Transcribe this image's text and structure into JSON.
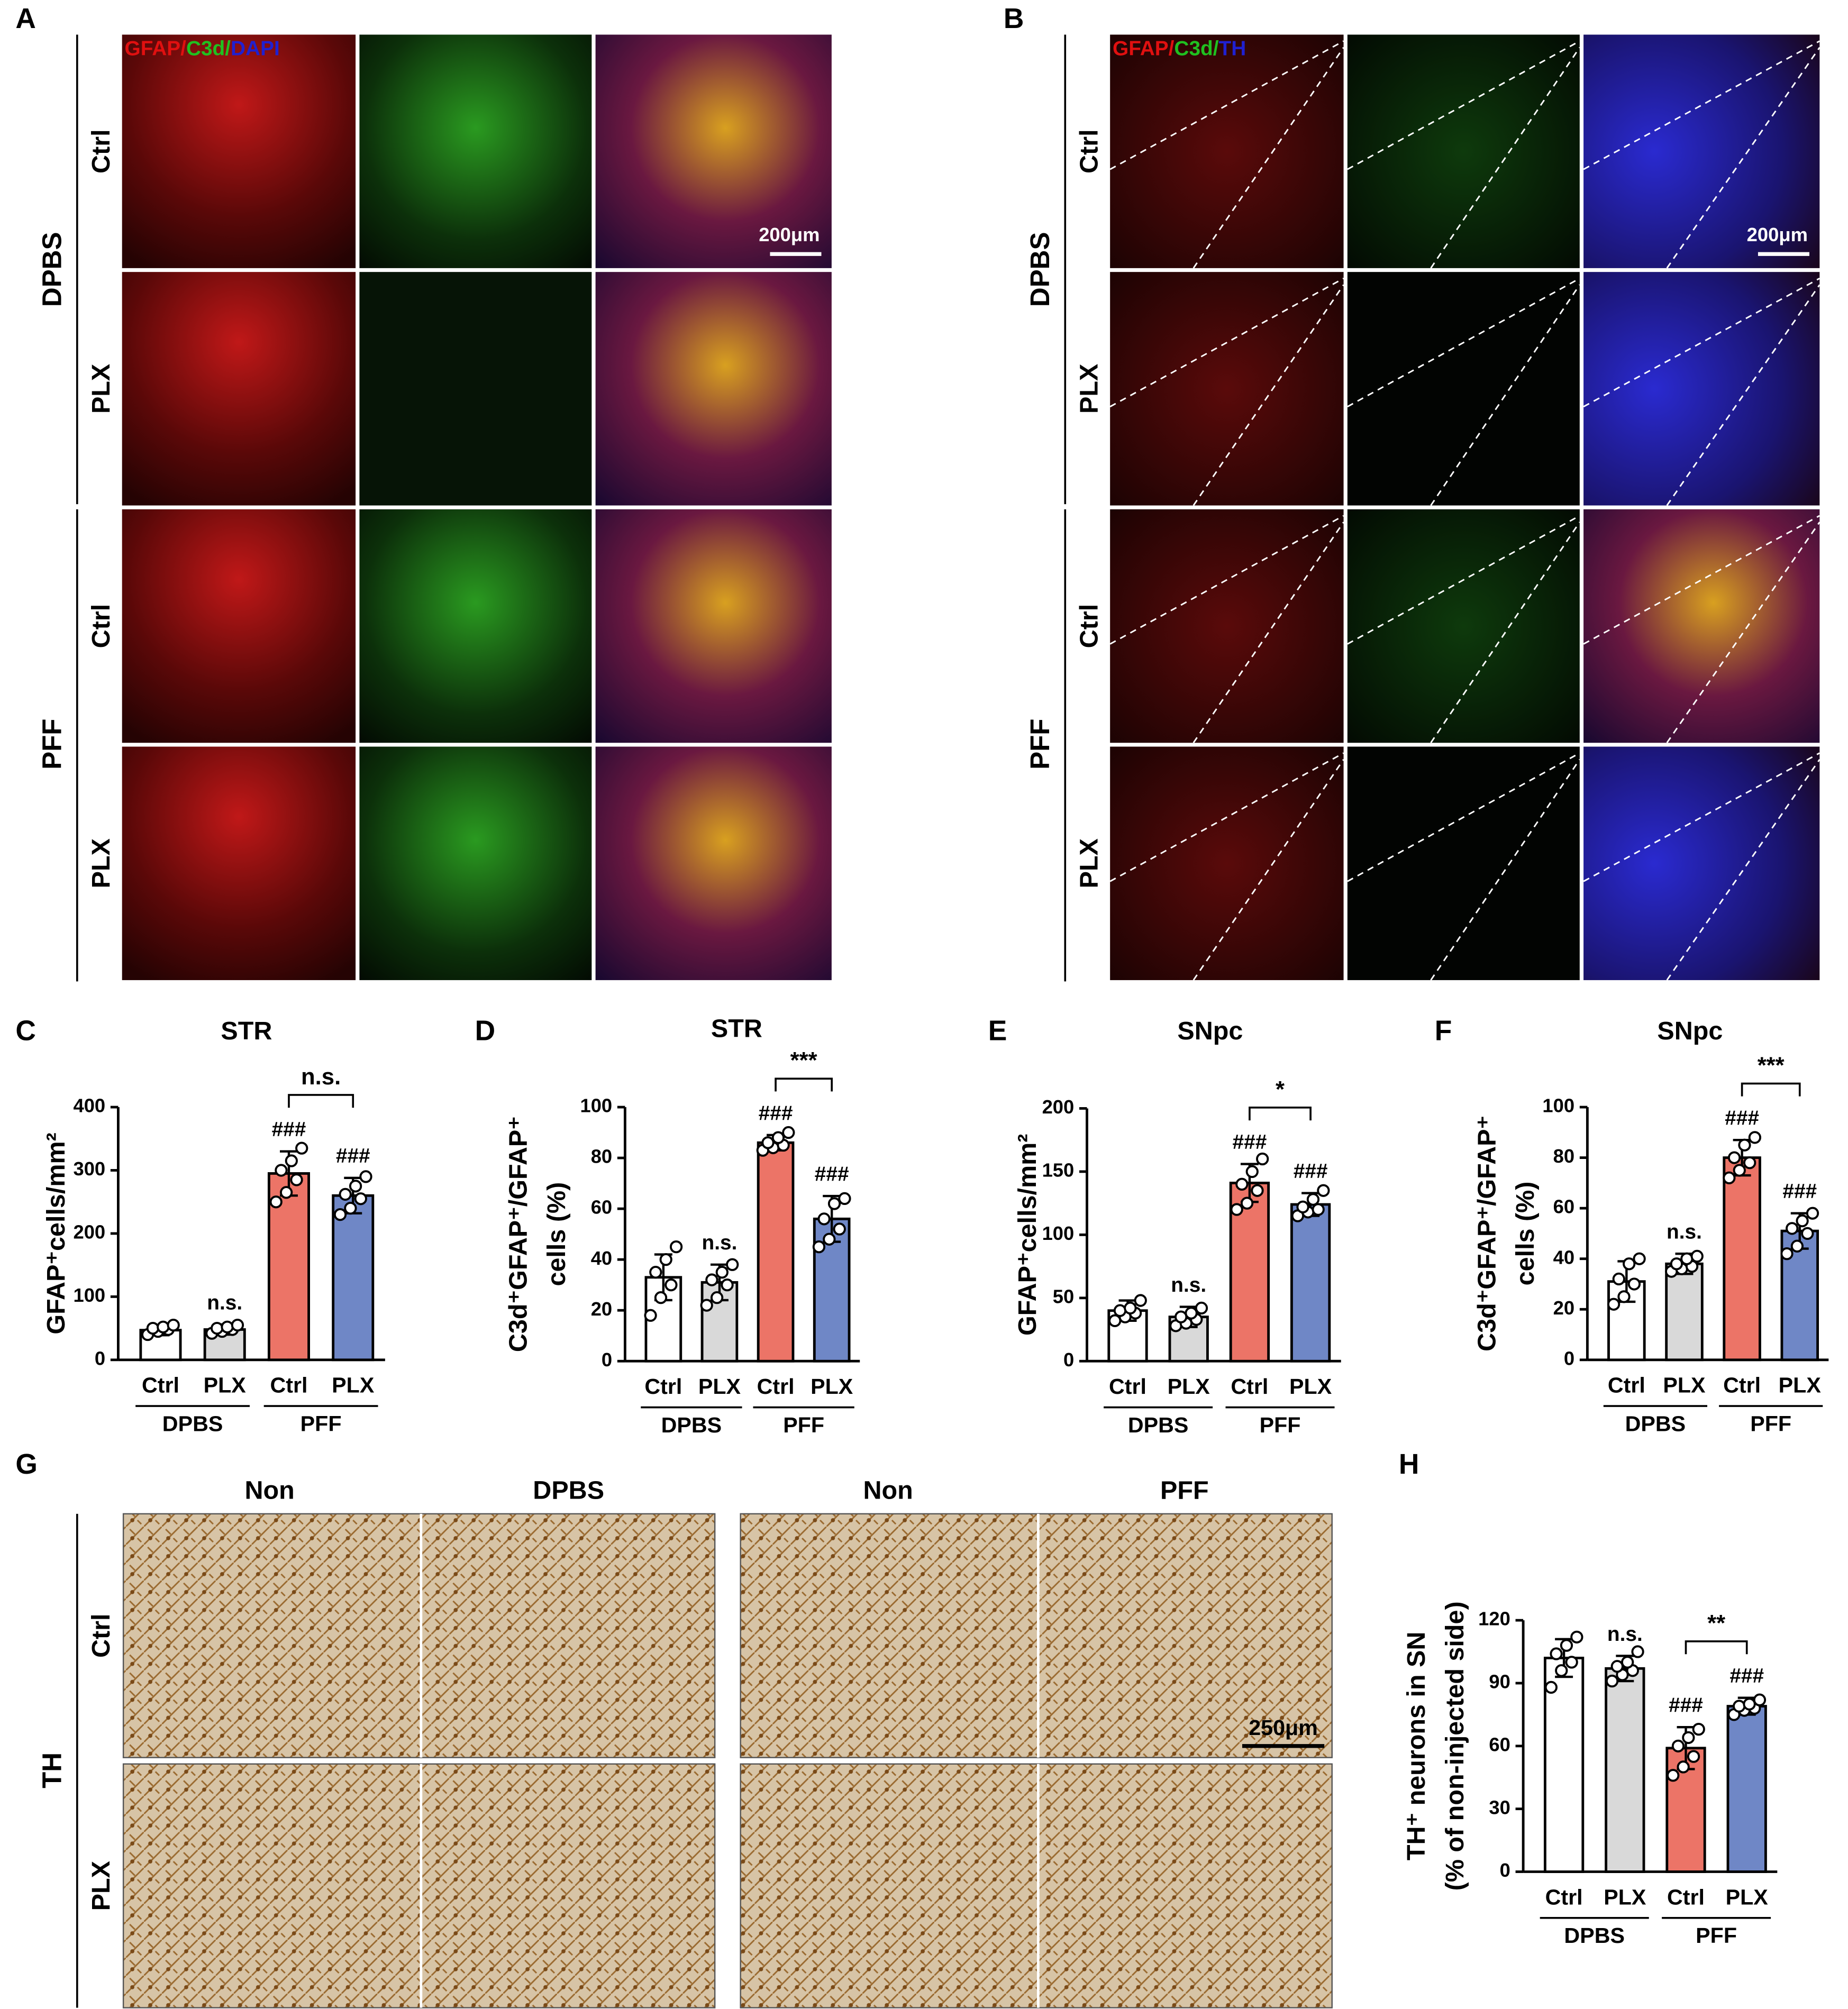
{
  "figure": {
    "panel_A": {
      "letter": "A",
      "stains": [
        "GFAP/",
        "C3d/",
        "DAPI"
      ],
      "stain_colors": [
        "#e01010",
        "#20c020",
        "#2020d0"
      ],
      "groups": [
        "DPBS",
        "PFF"
      ],
      "rows": [
        "Ctrl",
        "PLX",
        "Ctrl",
        "PLX"
      ],
      "scale_bar": "200μm"
    },
    "panel_B": {
      "letter": "B",
      "stains": [
        "GFAP/",
        "C3d/",
        "TH"
      ],
      "stain_colors": [
        "#e01010",
        "#20c020",
        "#2020d0"
      ],
      "groups": [
        "DPBS",
        "PFF"
      ],
      "rows": [
        "Ctrl",
        "PLX",
        "Ctrl",
        "PLX"
      ],
      "scale_bar": "200μm"
    },
    "panel_G": {
      "letter": "G",
      "columns": [
        "Non",
        "DPBS",
        "Non",
        "PFF"
      ],
      "group": "TH",
      "rows": [
        "Ctrl",
        "PLX"
      ],
      "scale_bar": "250μm"
    }
  },
  "chart_data": [
    {
      "type": "bar",
      "label": "C",
      "title": "STR",
      "ylabel": [
        "GFAP⁺cells/mm²"
      ],
      "categories": [
        "Ctrl",
        "PLX",
        "Ctrl",
        "PLX"
      ],
      "groups": [
        "DPBS",
        "PFF"
      ],
      "values": [
        47,
        48,
        295,
        260
      ],
      "errors": [
        8,
        8,
        35,
        28
      ],
      "colors": [
        "#ffffff",
        "#d9d9d9",
        "#ec7467",
        "#6f87c6"
      ],
      "points": [
        [
          40,
          45,
          48,
          50,
          52,
          55
        ],
        [
          42,
          45,
          48,
          50,
          52,
          55
        ],
        [
          250,
          265,
          285,
          300,
          315,
          335
        ],
        [
          230,
          240,
          255,
          262,
          275,
          290
        ]
      ],
      "bar_labels": [
        null,
        "n.s.",
        "###",
        "###"
      ],
      "bracket_label": "n.s.",
      "ylim": [
        0,
        400
      ],
      "yticks": [
        0,
        100,
        200,
        300,
        400
      ]
    },
    {
      "type": "bar",
      "label": "D",
      "title": "STR",
      "ylabel": [
        "C3d⁺GFAP⁺/GFAP⁺",
        "cells (%)"
      ],
      "categories": [
        "Ctrl",
        "PLX",
        "Ctrl",
        "PLX"
      ],
      "groups": [
        "DPBS",
        "PFF"
      ],
      "values": [
        33,
        31,
        86,
        56
      ],
      "errors": [
        9,
        7,
        3,
        9
      ],
      "colors": [
        "#ffffff",
        "#d9d9d9",
        "#ec7467",
        "#6f87c6"
      ],
      "points": [
        [
          18,
          25,
          30,
          35,
          40,
          45
        ],
        [
          22,
          25,
          30,
          32,
          35,
          38
        ],
        [
          83,
          84,
          85,
          86,
          88,
          90
        ],
        [
          45,
          48,
          52,
          56,
          62,
          64
        ]
      ],
      "bar_labels": [
        null,
        "n.s.",
        "###",
        "###"
      ],
      "bracket_label": "***",
      "ylim": [
        0,
        100
      ],
      "yticks": [
        0,
        20,
        40,
        60,
        80,
        100
      ]
    },
    {
      "type": "bar",
      "label": "E",
      "title": "SNpc",
      "ylabel": [
        "GFAP⁺cells/mm²"
      ],
      "categories": [
        "Ctrl",
        "PLX",
        "Ctrl",
        "PLX"
      ],
      "groups": [
        "DPBS",
        "PFF"
      ],
      "values": [
        40,
        35,
        141,
        124
      ],
      "errors": [
        8,
        8,
        15,
        9
      ],
      "colors": [
        "#ffffff",
        "#d9d9d9",
        "#ec7467",
        "#6f87c6"
      ],
      "points": [
        [
          32,
          35,
          38,
          40,
          42,
          48
        ],
        [
          28,
          30,
          33,
          35,
          38,
          42
        ],
        [
          120,
          125,
          135,
          140,
          150,
          160
        ],
        [
          115,
          118,
          120,
          122,
          128,
          135
        ]
      ],
      "bar_labels": [
        null,
        "n.s.",
        "###",
        "###"
      ],
      "bracket_label": "*",
      "ylim": [
        0,
        200
      ],
      "yticks": [
        0,
        50,
        100,
        150,
        200
      ]
    },
    {
      "type": "bar",
      "label": "F",
      "title": "SNpc",
      "ylabel": [
        "C3d⁺GFAP⁺/GFAP⁺",
        "cells (%)"
      ],
      "categories": [
        "Ctrl",
        "PLX",
        "Ctrl",
        "PLX"
      ],
      "groups": [
        "DPBS",
        "PFF"
      ],
      "values": [
        31,
        38,
        80,
        51
      ],
      "errors": [
        8,
        4,
        7,
        7
      ],
      "colors": [
        "#ffffff",
        "#d9d9d9",
        "#ec7467",
        "#6f87c6"
      ],
      "points": [
        [
          22,
          25,
          30,
          32,
          38,
          40
        ],
        [
          35,
          36,
          37,
          38,
          40,
          41
        ],
        [
          72,
          75,
          78,
          80,
          85,
          88
        ],
        [
          42,
          45,
          50,
          52,
          55,
          58
        ]
      ],
      "bar_labels": [
        null,
        "n.s.",
        "###",
        "###"
      ],
      "bracket_label": "***",
      "ylim": [
        0,
        100
      ],
      "yticks": [
        0,
        20,
        40,
        60,
        80,
        100
      ]
    },
    {
      "type": "bar",
      "label": "H",
      "ylabel": [
        "TH⁺ neurons in SN",
        "(% of non-injected side)"
      ],
      "categories": [
        "Ctrl",
        "PLX",
        "Ctrl",
        "PLX"
      ],
      "groups": [
        "DPBS",
        "PFF"
      ],
      "values": [
        102,
        97,
        59,
        79
      ],
      "errors": [
        9,
        6,
        10,
        4
      ],
      "colors": [
        "#ffffff",
        "#d9d9d9",
        "#ec7467",
        "#6f87c6"
      ],
      "points": [
        [
          88,
          96,
          100,
          104,
          108,
          112
        ],
        [
          91,
          94,
          96,
          98,
          100,
          105
        ],
        [
          46,
          50,
          55,
          60,
          64,
          68
        ],
        [
          75,
          77,
          78,
          79,
          80,
          82
        ]
      ],
      "bar_labels": [
        null,
        "n.s.",
        "###",
        "###"
      ],
      "bracket_label": "**",
      "ylim": [
        0,
        120
      ],
      "yticks": [
        0,
        30,
        60,
        90,
        120
      ]
    }
  ]
}
